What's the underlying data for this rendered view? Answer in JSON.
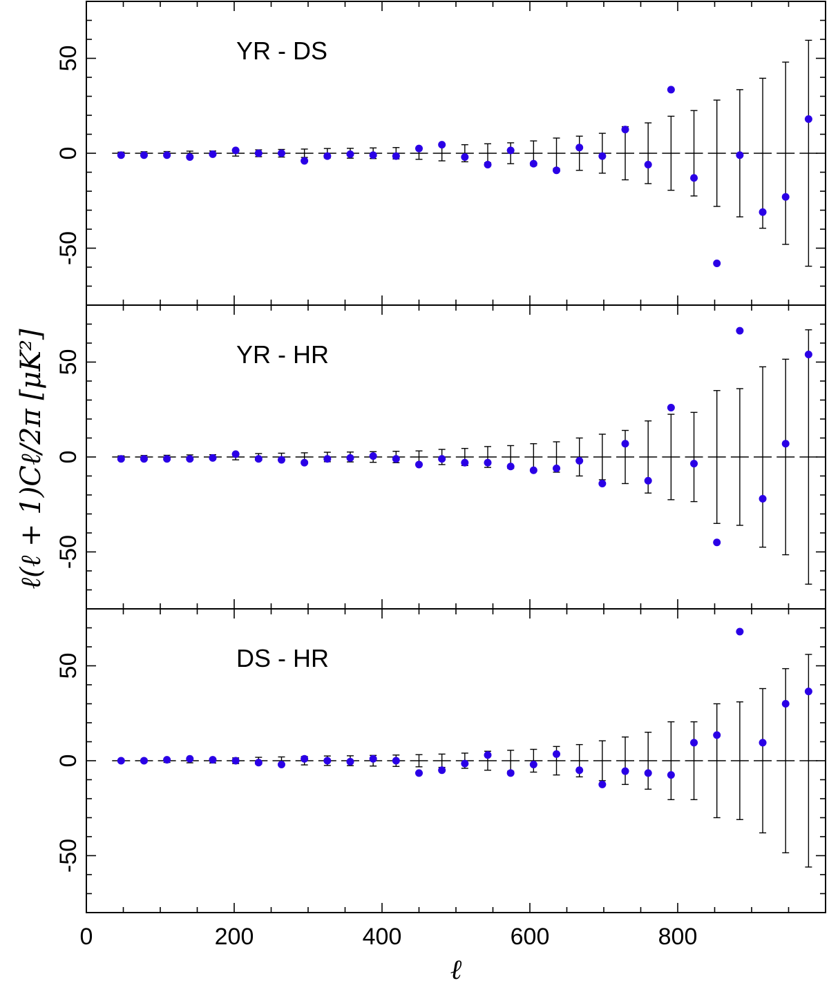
{
  "chart_data": {
    "type": "scatter",
    "xlabel": "ℓ",
    "ylabel": "ℓ(ℓ + 1)Cℓ/2π   [μK²]",
    "xlim": [
      0,
      1000
    ],
    "x_ticks": [
      0,
      200,
      400,
      600,
      800
    ],
    "ylim": [
      -80,
      80
    ],
    "y_ticks": [
      -50,
      0,
      50
    ],
    "grid": false,
    "marker_color": "#2a00e6",
    "panels": [
      {
        "title": "YR - DS",
        "x": [
          47,
          78,
          109,
          140,
          171,
          202,
          233,
          264,
          295,
          326,
          357,
          388,
          419,
          450,
          481,
          512,
          543,
          574,
          605,
          636,
          667,
          698,
          729,
          760,
          791,
          822,
          853,
          884,
          915,
          946,
          977
        ],
        "y": [
          -1,
          -1,
          -1,
          -2,
          -0.5,
          1.5,
          0,
          0,
          -4,
          -1.5,
          -0.5,
          -1,
          -1.5,
          2.5,
          4.5,
          -2,
          -6,
          1.5,
          -5.5,
          -9,
          3,
          -1.5,
          12.5,
          -6,
          33.5,
          -13,
          -58,
          -1,
          -31,
          -23,
          18
        ],
        "err": [
          0.6,
          0.8,
          0.9,
          1.1,
          1.2,
          1.5,
          1.8,
          2,
          2.2,
          2.5,
          2.6,
          2.8,
          3,
          3.2,
          4,
          4.5,
          5,
          5.5,
          6.5,
          8,
          9,
          10.5,
          14,
          16,
          19.5,
          22.5,
          28,
          33.5,
          39.5,
          48,
          59.5
        ]
      },
      {
        "title": "YR - HR",
        "x": [
          47,
          78,
          109,
          140,
          171,
          202,
          233,
          264,
          295,
          326,
          357,
          388,
          419,
          450,
          481,
          512,
          543,
          574,
          605,
          636,
          667,
          698,
          729,
          760,
          791,
          822,
          853,
          884,
          915,
          946,
          977
        ],
        "y": [
          -1,
          -1,
          -1,
          -1,
          -0.5,
          1.5,
          -1,
          -1.5,
          -3,
          -1,
          -0.5,
          0.5,
          -1,
          -4,
          -1,
          -3,
          -3,
          -5,
          -7,
          -6,
          -2,
          -14,
          7,
          -12.5,
          26,
          -3.5,
          -45,
          66.5,
          -22,
          7,
          54
        ],
        "err": [
          0.6,
          0.8,
          0.9,
          1.1,
          1.2,
          1.5,
          1.8,
          2,
          2.2,
          2.5,
          2.6,
          2.8,
          3,
          3.2,
          4,
          4.5,
          5.5,
          6,
          7,
          8,
          10,
          12,
          14,
          19,
          22.5,
          23.5,
          35,
          36,
          47.5,
          51.5,
          67
        ]
      },
      {
        "title": "DS - HR",
        "x": [
          47,
          78,
          109,
          140,
          171,
          202,
          233,
          264,
          295,
          326,
          357,
          388,
          419,
          450,
          481,
          512,
          543,
          574,
          605,
          636,
          667,
          698,
          729,
          760,
          791,
          822,
          853,
          884,
          915,
          946,
          977
        ],
        "y": [
          0,
          0,
          0.5,
          1,
          0.5,
          0,
          -1,
          -2,
          1,
          0,
          -0.5,
          1,
          0,
          -6.5,
          -5,
          -1.5,
          3,
          -6.5,
          -2,
          3.5,
          -5,
          -12.5,
          -5.5,
          -6.5,
          -7.5,
          9.5,
          13.5,
          68,
          9.5,
          30,
          36.5
        ],
        "err": [
          0.6,
          0.8,
          0.9,
          1.1,
          1.2,
          1.5,
          1.8,
          2,
          2.2,
          2.5,
          2.6,
          2.8,
          3,
          3.2,
          3.5,
          4,
          5,
          5.5,
          6,
          7.5,
          8.5,
          10.5,
          12.5,
          15,
          20.5,
          20.5,
          30,
          31,
          38,
          48.5,
          56
        ]
      }
    ]
  }
}
